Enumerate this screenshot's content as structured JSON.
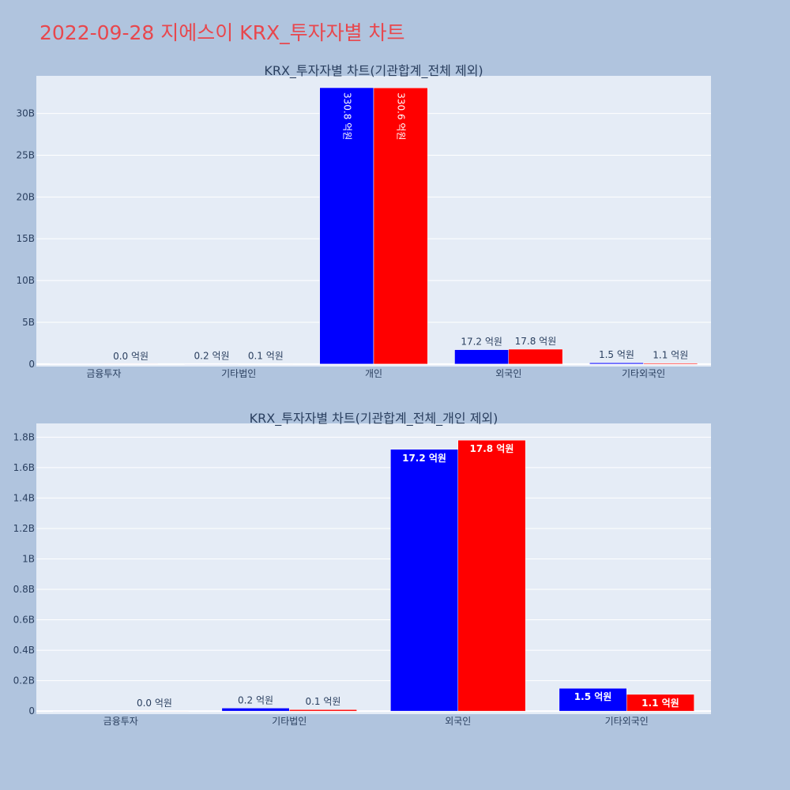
{
  "title": "2022-09-28 지에스이 KRX_투자자별 차트",
  "colors": {
    "buy": "#0000ff",
    "sell": "#ff0000",
    "plot_bg": "#e5ecf6",
    "page_bg": "#b0c4de",
    "title": "#e8474d"
  },
  "chart_data": [
    {
      "type": "bar",
      "title": "KRX_투자자별 차트(기관합계_전체 제외)",
      "categories": [
        "금융투자",
        "기타법인",
        "개인",
        "외국인",
        "기타외국인"
      ],
      "series": [
        {
          "values": [
            0,
            20000000,
            33080000000,
            1720000000,
            150000000
          ],
          "labels": [
            "",
            "0.2 억원",
            "330.8 억원",
            "17.2 억원",
            "1.5 억원"
          ]
        },
        {
          "values": [
            0,
            10000000,
            33060000000,
            1780000000,
            110000000
          ],
          "labels": [
            "0.0 억원",
            "0.1 억원",
            "330.6 억원",
            "17.8 억원",
            "1.1 억원"
          ]
        }
      ],
      "ylim": [
        -300000000,
        34500000000
      ],
      "yticks": [
        0,
        5000000000,
        10000000000,
        15000000000,
        20000000000,
        25000000000,
        30000000000
      ],
      "ytick_labels": [
        "0",
        "5B",
        "10B",
        "15B",
        "20B",
        "25B",
        "30B"
      ],
      "xlabel": "",
      "ylabel": ""
    },
    {
      "type": "bar",
      "title": "KRX_투자자별 차트(기관합계_전체_개인 제외)",
      "categories": [
        "금융투자",
        "기타법인",
        "외국인",
        "기타외국인"
      ],
      "series": [
        {
          "values": [
            0,
            20000000,
            1720000000,
            150000000
          ],
          "labels": [
            "",
            "0.2 억원",
            "17.2 억원",
            "1.5 억원"
          ]
        },
        {
          "values": [
            0,
            10000000,
            1780000000,
            110000000
          ],
          "labels": [
            "0.0 억원",
            "0.1 억원",
            "17.8 억원",
            "1.1 억원"
          ]
        }
      ],
      "ylim": [
        -20000000,
        1890000000
      ],
      "yticks": [
        0,
        200000000,
        400000000,
        600000000,
        800000000,
        1000000000,
        1200000000,
        1400000000,
        1600000000,
        1800000000
      ],
      "ytick_labels": [
        "0",
        "0.2B",
        "0.4B",
        "0.6B",
        "0.8B",
        "1B",
        "1.2B",
        "1.4B",
        "1.6B",
        "1.8B"
      ],
      "xlabel": "",
      "ylabel": ""
    }
  ]
}
